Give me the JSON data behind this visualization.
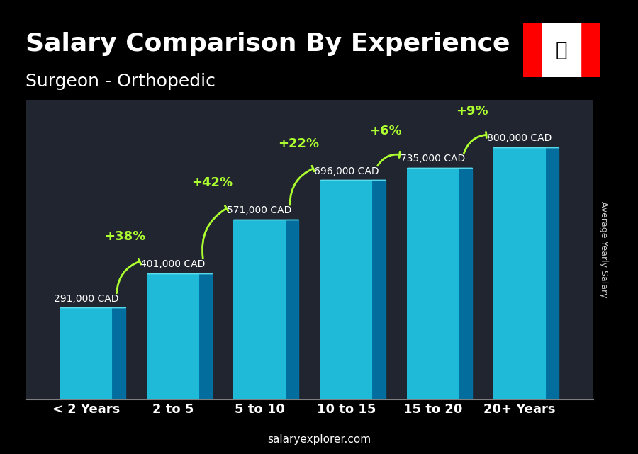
{
  "title": "Salary Comparison By Experience",
  "subtitle": "Surgeon - Orthopedic",
  "categories": [
    "< 2 Years",
    "2 to 5",
    "5 to 10",
    "10 to 15",
    "15 to 20",
    "20+ Years"
  ],
  "values": [
    291000,
    401000,
    571000,
    696000,
    735000,
    800000
  ],
  "labels": [
    "291,000 CAD",
    "401,000 CAD",
    "571,000 CAD",
    "696,000 CAD",
    "735,000 CAD",
    "800,000 CAD"
  ],
  "pct_changes": [
    "+38%",
    "+42%",
    "+22%",
    "+6%",
    "+9%"
  ],
  "bar_color": "#00BFFF",
  "bar_edge_color": "#00BFFF",
  "background_color": "#1a1a2e",
  "title_color": "#FFFFFF",
  "label_color": "#CCCCCC",
  "pct_color": "#ADFF2F",
  "arrow_color": "#ADFF2F",
  "xlabel_color": "#FFFFFF",
  "watermark": "salaryexplorer.com",
  "ylabel": "Average Yearly Salary",
  "ylim": [
    0,
    950000
  ],
  "title_fontsize": 26,
  "subtitle_fontsize": 18,
  "bar_width": 0.6
}
